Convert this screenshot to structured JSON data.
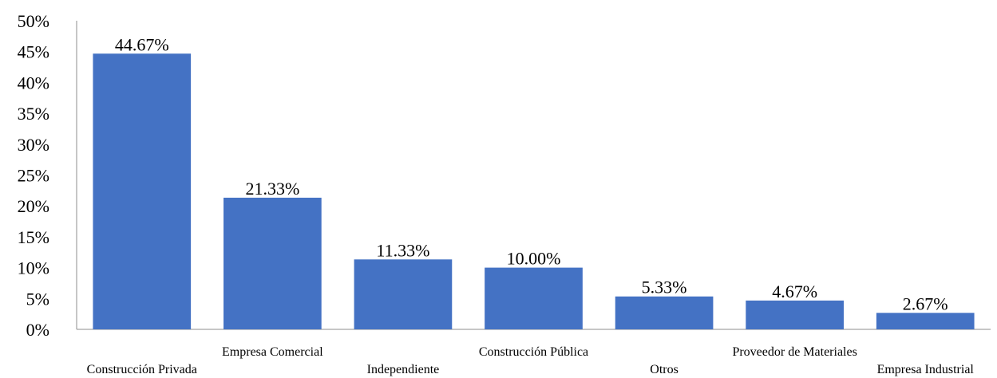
{
  "chart_data": {
    "type": "bar",
    "categories": [
      "Construcción Privada",
      "Empresa Comercial",
      "Independiente",
      "Construcción Pública",
      "Otros",
      "Proveedor de Materiales",
      "Empresa Industrial"
    ],
    "values": [
      44.67,
      21.33,
      11.33,
      10.0,
      5.33,
      4.67,
      2.67
    ],
    "data_labels": [
      "44.67%",
      "21.33%",
      "11.33%",
      "10.00%",
      "5.33%",
      "4.67%",
      "2.67%"
    ],
    "y_tick_labels": [
      "0%",
      "5%",
      "10%",
      "15%",
      "20%",
      "25%",
      "30%",
      "35%",
      "40%",
      "45%",
      "50%"
    ],
    "ylim": [
      0,
      50
    ],
    "y_unit": "percent",
    "grid": false,
    "legend": "none",
    "title": "",
    "xlabel": "",
    "ylabel": "",
    "bar_color": "#4472C4"
  }
}
